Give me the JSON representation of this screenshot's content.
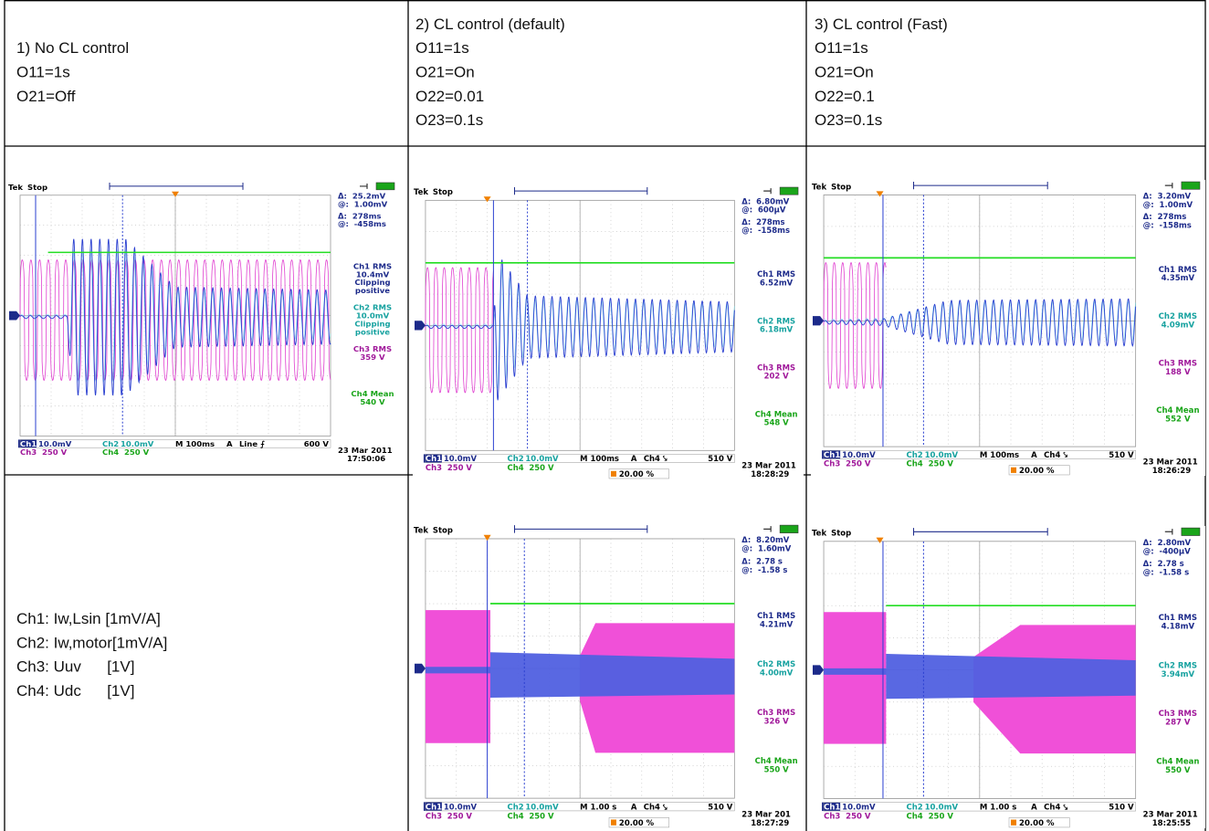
{
  "table": {
    "rows": [
      [
        {
          "lines": [
            "1) No CL control",
            "O11=1s",
            "O21=Off"
          ]
        },
        {
          "lines": [
            "2) CL control (default)",
            "O11=1s",
            "O21=On",
            "O22=0.01",
            "O23=0.1s"
          ]
        },
        {
          "lines": [
            "3) CL control (Fast)",
            "O11=1s",
            "O21=On",
            "O22=0.1",
            "O23=0.1s"
          ]
        }
      ],
      [
        {
          "brand": "Tek",
          "state": "Stop",
          "cursors": [
            "Δ:  25.2mV",
            "@:  1.00mV",
            "Δ:  278ms",
            "@:  -458ms"
          ],
          "measures": [
            {
              "lines": [
                "Ch1 RMS",
                "10.4mV",
                "Clipping",
                "positive"
              ],
              "color": "#1c2a8a"
            },
            {
              "lines": [
                "Ch2 RMS",
                "10.0mV",
                "Clipping",
                "positive"
              ],
              "color": "#17a2a0"
            },
            {
              "lines": [
                "Ch3 RMS",
                "359 V"
              ],
              "color": "#a0189a"
            },
            {
              "lines": [
                "Ch4 Mean",
                "540 V"
              ],
              "color": "#1aa51a"
            }
          ],
          "bottom": [
            "Ch1",
            "10.0mV",
            "Ch2",
            "10.0mV",
            "M 100ms",
            "A",
            "Line ⨍",
            "600 V"
          ],
          "bottom2": [
            "Ch3",
            "250 V",
            "Ch4",
            "250 V"
          ],
          "date": "23 Mar 2011",
          "time": "17:50:06"
        },
        {
          "brand": "Tek",
          "state": "Stop",
          "cursors": [
            "Δ:  6.80mV",
            "@:  600µV",
            "Δ:  278ms",
            "@:  -158ms"
          ],
          "measures": [
            {
              "lines": [
                "Ch1 RMS",
                "6.52mV"
              ],
              "color": "#1c2a8a"
            },
            {
              "lines": [
                "Ch2 RMS",
                "6.18mV"
              ],
              "color": "#17a2a0"
            },
            {
              "lines": [
                "Ch3 RMS",
                "202 V"
              ],
              "color": "#a0189a"
            },
            {
              "lines": [
                "Ch4 Mean",
                "548 V"
              ],
              "color": "#1aa51a"
            }
          ],
          "bottom": [
            "Ch1",
            "10.0mV",
            "Ch2",
            "10.0mV",
            "M 100ms",
            "A",
            "Ch4 ⤥",
            "510 V"
          ],
          "bottom2": [
            "Ch3",
            "250 V",
            "Ch4",
            "250 V"
          ],
          "trigger_pos": "20.00 %",
          "date": "23 Mar 2011",
          "time": "18:28:29"
        },
        {
          "brand": "Tek",
          "state": "Stop",
          "cursors": [
            "Δ:  3.20mV",
            "@:  1.00mV",
            "Δ:  278ms",
            "@:  -158ms"
          ],
          "measures": [
            {
              "lines": [
                "Ch1 RMS",
                "4.35mV"
              ],
              "color": "#1c2a8a"
            },
            {
              "lines": [
                "Ch2 RMS",
                "4.09mV"
              ],
              "color": "#17a2a0"
            },
            {
              "lines": [
                "Ch3 RMS",
                "188 V"
              ],
              "color": "#a0189a"
            },
            {
              "lines": [
                "Ch4 Mean",
                "552 V"
              ],
              "color": "#1aa51a"
            }
          ],
          "bottom": [
            "Ch1",
            "10.0mV",
            "Ch2",
            "10.0mV",
            "M 100ms",
            "A",
            "Ch4 ⤥",
            "510 V"
          ],
          "bottom2": [
            "Ch3",
            "250 V",
            "Ch4",
            "250 V"
          ],
          "trigger_pos": "20.00 %",
          "date": "23 Mar 2011",
          "time": "18:26:29"
        }
      ],
      [
        {
          "lines": [
            "Ch1: Iw,Lsin [1mV/A]",
            "Ch2: Iw,motor[1mV/A]",
            "Ch3: Uuv      [1V]",
            "Ch4: Udc      [1V]"
          ]
        },
        {
          "brand": "Tek",
          "state": "Stop",
          "cursors": [
            "Δ:  8.20mV",
            "@:  1.60mV",
            "Δ:  2.78 s",
            "@:  -1.58 s"
          ],
          "measures": [
            {
              "lines": [
                "Ch1 RMS",
                "4.21mV"
              ],
              "color": "#1c2a8a"
            },
            {
              "lines": [
                "Ch2 RMS",
                "4.00mV"
              ],
              "color": "#17a2a0"
            },
            {
              "lines": [
                "Ch3 RMS",
                "326 V"
              ],
              "color": "#a0189a"
            },
            {
              "lines": [
                "Ch4 Mean",
                "550 V"
              ],
              "color": "#1aa51a"
            }
          ],
          "bottom": [
            "Ch1",
            "10.0mV",
            "Ch2",
            "10.0mV",
            "M 1.00 s",
            "A",
            "Ch4 ⤥",
            "510 V"
          ],
          "bottom2": [
            "Ch3",
            "250 V",
            "Ch4",
            "250 V"
          ],
          "trigger_pos": "20.00 %",
          "date": "23 Mar 201",
          "time": "18:27:29"
        },
        {
          "brand": "Tek",
          "state": "Stop",
          "cursors": [
            "Δ:  2.80mV",
            "@:  -400µV",
            "Δ:  2.78 s",
            "@:  -1.58 s"
          ],
          "measures": [
            {
              "lines": [
                "Ch1 RMS",
                "4.18mV"
              ],
              "color": "#1c2a8a"
            },
            {
              "lines": [
                "Ch2 RMS",
                "3.94mV"
              ],
              "color": "#17a2a0"
            },
            {
              "lines": [
                "Ch3 RMS",
                "287 V"
              ],
              "color": "#a0189a"
            },
            {
              "lines": [
                "Ch4 Mean",
                "550 V"
              ],
              "color": "#1aa51a"
            }
          ],
          "bottom": [
            "Ch1",
            "10.0mV",
            "Ch2",
            "10.0mV",
            "M 1.00 s",
            "A",
            "Ch4 ⤥",
            "510 V"
          ],
          "bottom2": [
            "Ch3",
            "250 V",
            "Ch4",
            "250 V"
          ],
          "trigger_pos": "20.00 %",
          "date": "23 Mar 2011",
          "time": "18:25:55"
        }
      ]
    ]
  }
}
